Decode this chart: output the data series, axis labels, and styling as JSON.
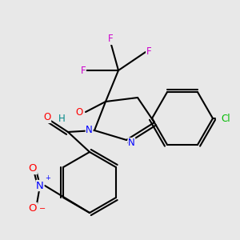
{
  "bg_color": "#e8e8e8",
  "bond_color": "#000000",
  "atom_colors": {
    "N": "#0000ff",
    "O": "#ff0000",
    "F": "#cc00cc",
    "Cl": "#00bb00",
    "H": "#008888",
    "C": "#000000"
  },
  "font_size": 8.5,
  "fig_size": [
    3.0,
    3.0
  ],
  "dpi": 100
}
